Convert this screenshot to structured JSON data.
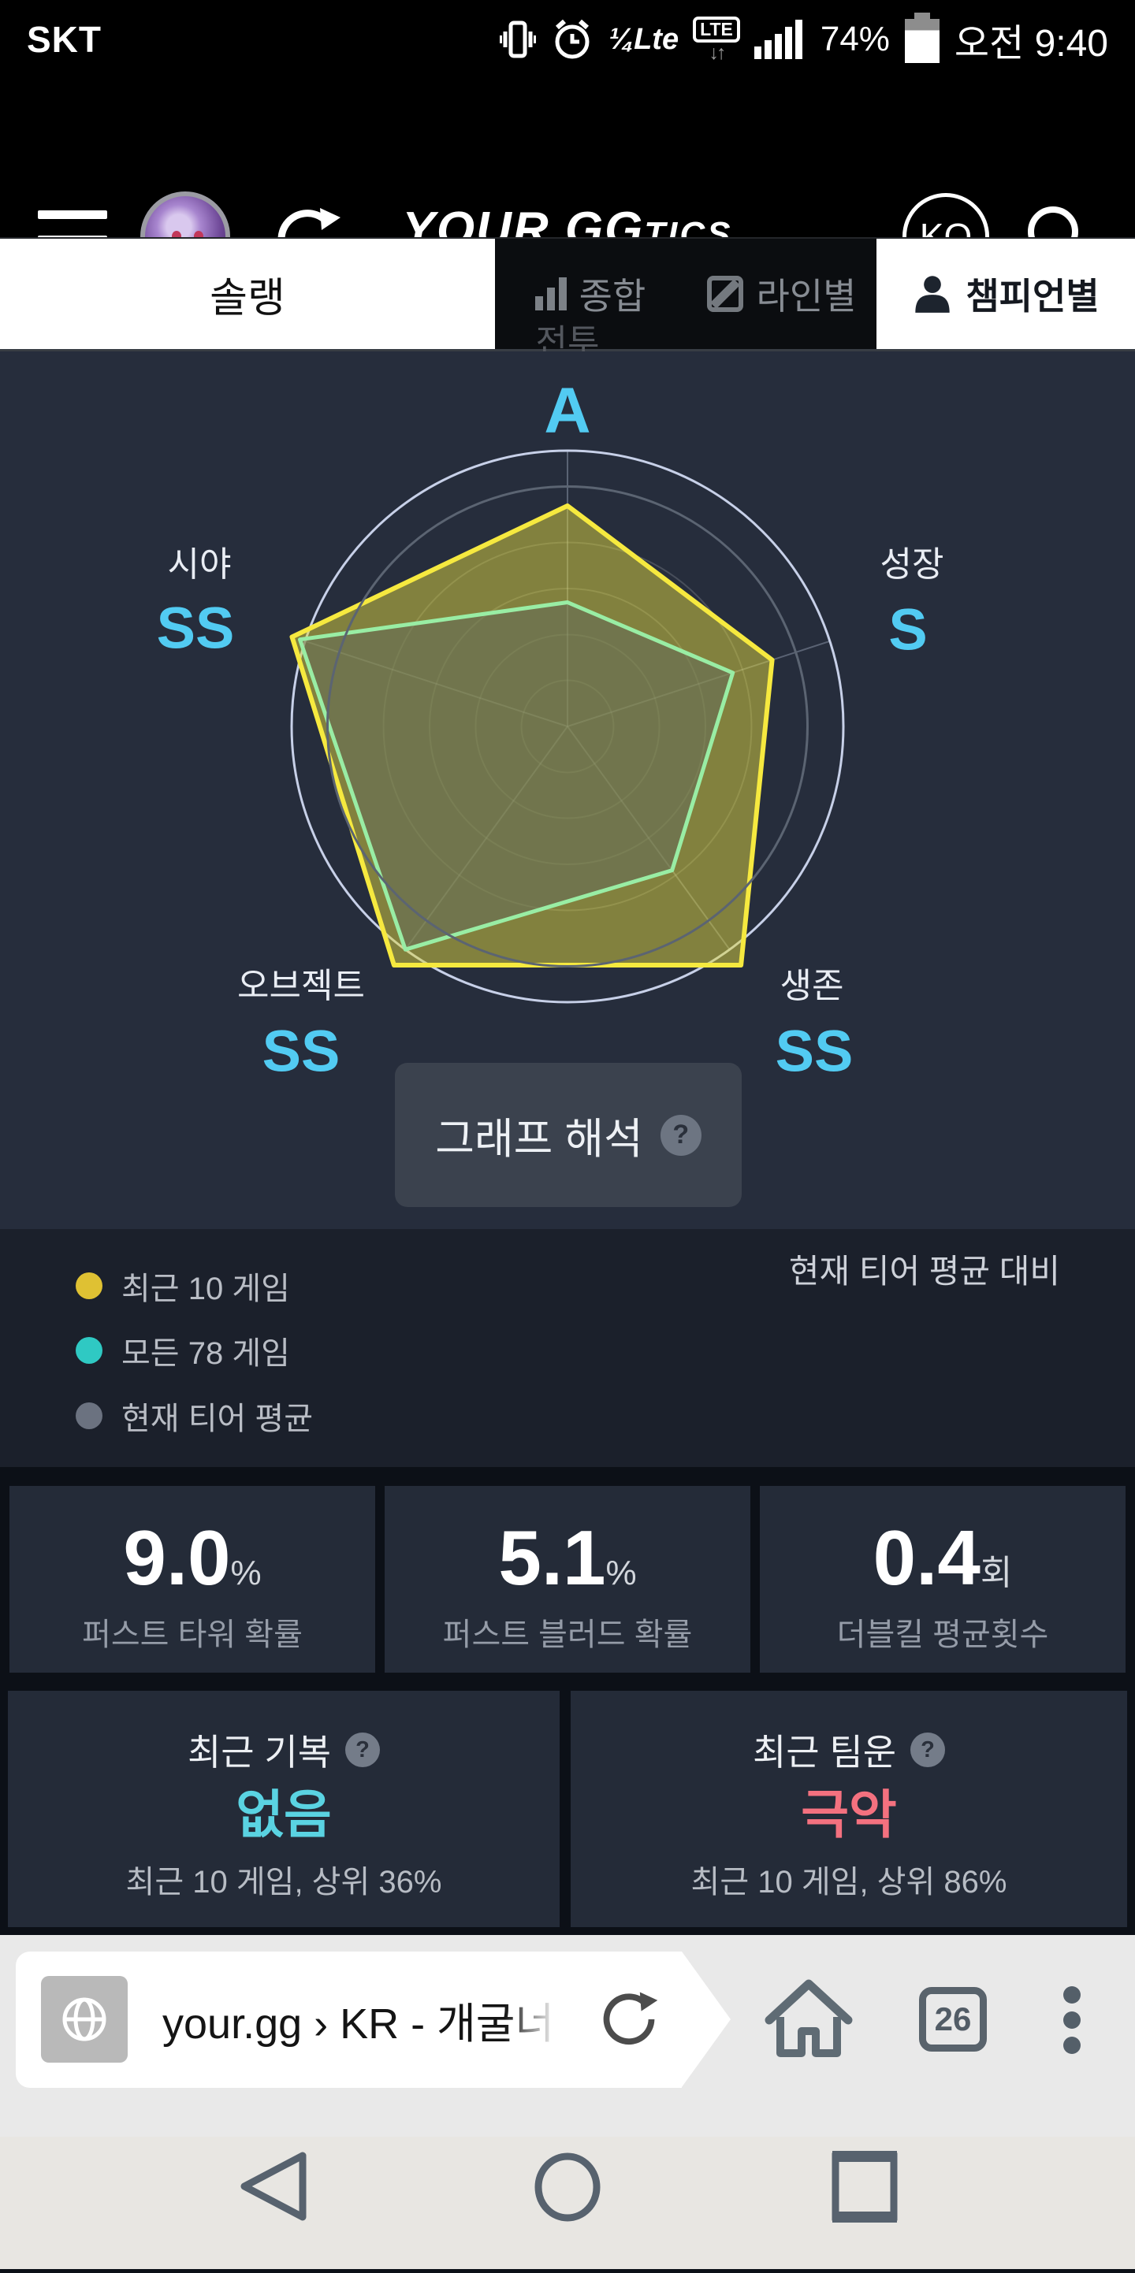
{
  "status_bar": {
    "carrier": "SKT",
    "volte": "¼Lte",
    "lte": "LTE",
    "arrows": "↓↑",
    "battery_percent": "74%",
    "time": "오전 9:40"
  },
  "header": {
    "logo": "YOUR.GG",
    "logo_suffix": "TICS",
    "lang_badge": "KO"
  },
  "tabs": {
    "queue": "솔랭",
    "overview": "종합",
    "by_lane": "라인별",
    "by_champion": "챔피언별"
  },
  "radar": {
    "axes": [
      {
        "name": "전투",
        "grade": "A"
      },
      {
        "name": "성장",
        "grade": "S"
      },
      {
        "name": "생존",
        "grade": "SS"
      },
      {
        "name": "오브젝트",
        "grade": "SS"
      },
      {
        "name": "시야",
        "grade": "SS"
      }
    ],
    "button_label": "그래프 해석",
    "button_help": "?"
  },
  "chart_data": {
    "type": "radar",
    "categories": [
      "전투",
      "성장",
      "생존",
      "오브젝트",
      "시야"
    ],
    "grades": [
      "A",
      "S",
      "SS",
      "SS",
      "SS"
    ],
    "scale": [
      0,
      1
    ],
    "rings": [
      0.167,
      0.333,
      0.5,
      0.667
    ],
    "outer_ring": {
      "value": 1.0,
      "color": "#c7d0e8"
    },
    "series": [
      {
        "name": "최근 10 게임",
        "type": "polygon",
        "color": "#f6e93f",
        "fill": "rgba(222,214,64,0.5)",
        "values": [
          0.8,
          0.78,
          1.07,
          1.07,
          1.05
        ]
      },
      {
        "name": "모든 78 게임",
        "type": "polygon",
        "color": "#99eda4",
        "fill": "rgba(95,105,92,0.5)",
        "values": [
          0.45,
          0.63,
          0.645,
          1.0,
          1.02
        ]
      },
      {
        "name": "현재 티어 평균",
        "type": "circle",
        "color": "#5b6472",
        "value": 0.87
      }
    ],
    "legend_position": "bottom-left"
  },
  "legend": {
    "items": [
      {
        "label": "최근 10 게임",
        "color": "#dfc133"
      },
      {
        "label": "모든 78 게임",
        "color": "#2fc9c3"
      },
      {
        "label": "현재 티어 평균",
        "color": "#6b7280"
      }
    ],
    "note": "현재 티어 평균 대비"
  },
  "stats": {
    "cards": [
      {
        "value": "9.0",
        "unit": "%",
        "label": "퍼스트 타워 확률"
      },
      {
        "value": "5.1",
        "unit": "%",
        "label": "퍼스트 블러드 확률"
      },
      {
        "value": "0.4",
        "unit": "회",
        "label": "더블킬 평균횟수"
      }
    ]
  },
  "insights": {
    "cards": [
      {
        "title": "최근 기복",
        "help": "?",
        "value": "없음",
        "value_color": "#5ad3e2",
        "caption": "최근 10 게임, 상위 36%"
      },
      {
        "title": "최근 팀운",
        "help": "?",
        "value": "극악",
        "value_color": "#f4717f",
        "caption": "최근 10 게임, 상위 86%"
      }
    ]
  },
  "browser": {
    "url": "your.gg › KR - 개굴너",
    "tab_count": "26"
  }
}
